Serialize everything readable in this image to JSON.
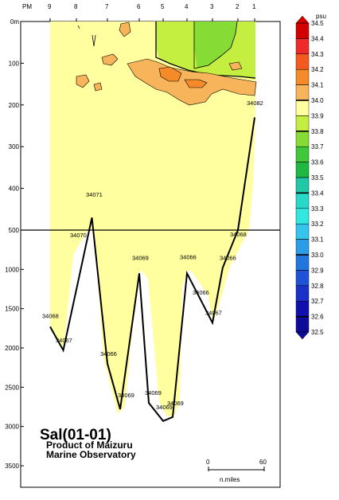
{
  "chart_data": {
    "type": "contour-section",
    "title": "Sal(01-01)",
    "subtitle_lines": [
      "Product of Maizuru",
      "Marine Observatory"
    ],
    "colorbar_unit": "psu",
    "colorbar_levels": [
      "34.5",
      "34.4",
      "34.3",
      "34.2",
      "34.1",
      "34.0",
      "33.9",
      "33.8",
      "33.7",
      "33.6",
      "33.5",
      "33.4",
      "33.3",
      "33.2",
      "33.1",
      "33.0",
      "32.9",
      "32.8",
      "32.7",
      "32.6",
      "32.5"
    ],
    "colorbar_colors": [
      "#d40000",
      "#ee2a2a",
      "#f45a1e",
      "#f58a28",
      "#f8b45a",
      "#ffffa0",
      "#c4ee40",
      "#86dc34",
      "#3ec83a",
      "#1eb842",
      "#20c8a8",
      "#28d8c8",
      "#30e8e0",
      "#34c4ec",
      "#2a9ce8",
      "#2276e0",
      "#2052d8",
      "#1c30c8",
      "#1010b0",
      "#0c0c98"
    ],
    "station_header": "PM",
    "stations": [
      "9",
      "8",
      "7",
      "6",
      "5",
      "4",
      "3",
      "2",
      "1"
    ],
    "depth_ticks_upper": [
      "0m",
      "100",
      "200",
      "300",
      "400"
    ],
    "depth_ticks_lower": [
      "500",
      "1000",
      "1500",
      "2000",
      "2500",
      "3000",
      "3500"
    ],
    "bottom_profile": [
      [
        9,
        1730
      ],
      [
        8.5,
        2030
      ],
      [
        7.5,
        470
      ],
      [
        7,
        2200
      ],
      [
        6.6,
        2780
      ],
      [
        6,
        1050
      ],
      [
        5.6,
        2700
      ],
      [
        5,
        2930
      ],
      [
        4.6,
        2880
      ],
      [
        4,
        1050
      ],
      [
        3,
        1680
      ],
      [
        2.6,
        980
      ],
      [
        2,
        500
      ],
      [
        1,
        230
      ]
    ],
    "data_labels": [
      {
        "text": "34082",
        "depth": 200
      },
      {
        "text": "34071",
        "depth": 420
      },
      {
        "text": "34070",
        "depth": 590
      },
      {
        "text": "34068",
        "depth": 580
      },
      {
        "text": "34069",
        "depth": 880
      },
      {
        "text": "34066",
        "depth": 870
      },
      {
        "text": "34066",
        "depth": 880
      },
      {
        "text": "34068",
        "depth": 1620
      },
      {
        "text": "34066",
        "depth": 1320
      },
      {
        "text": "34067",
        "depth": 1580
      },
      {
        "text": "34067",
        "depth": 1930
      },
      {
        "text": "34066",
        "depth": 2100
      },
      {
        "text": "34069",
        "depth": 2630
      },
      {
        "text": "34069",
        "depth": 2600
      },
      {
        "text": "34069",
        "depth": 2780
      },
      {
        "text": "34069",
        "depth": 2730
      }
    ],
    "scale_bar": {
      "start": "0",
      "end": "60",
      "unit": "n.miles"
    }
  }
}
